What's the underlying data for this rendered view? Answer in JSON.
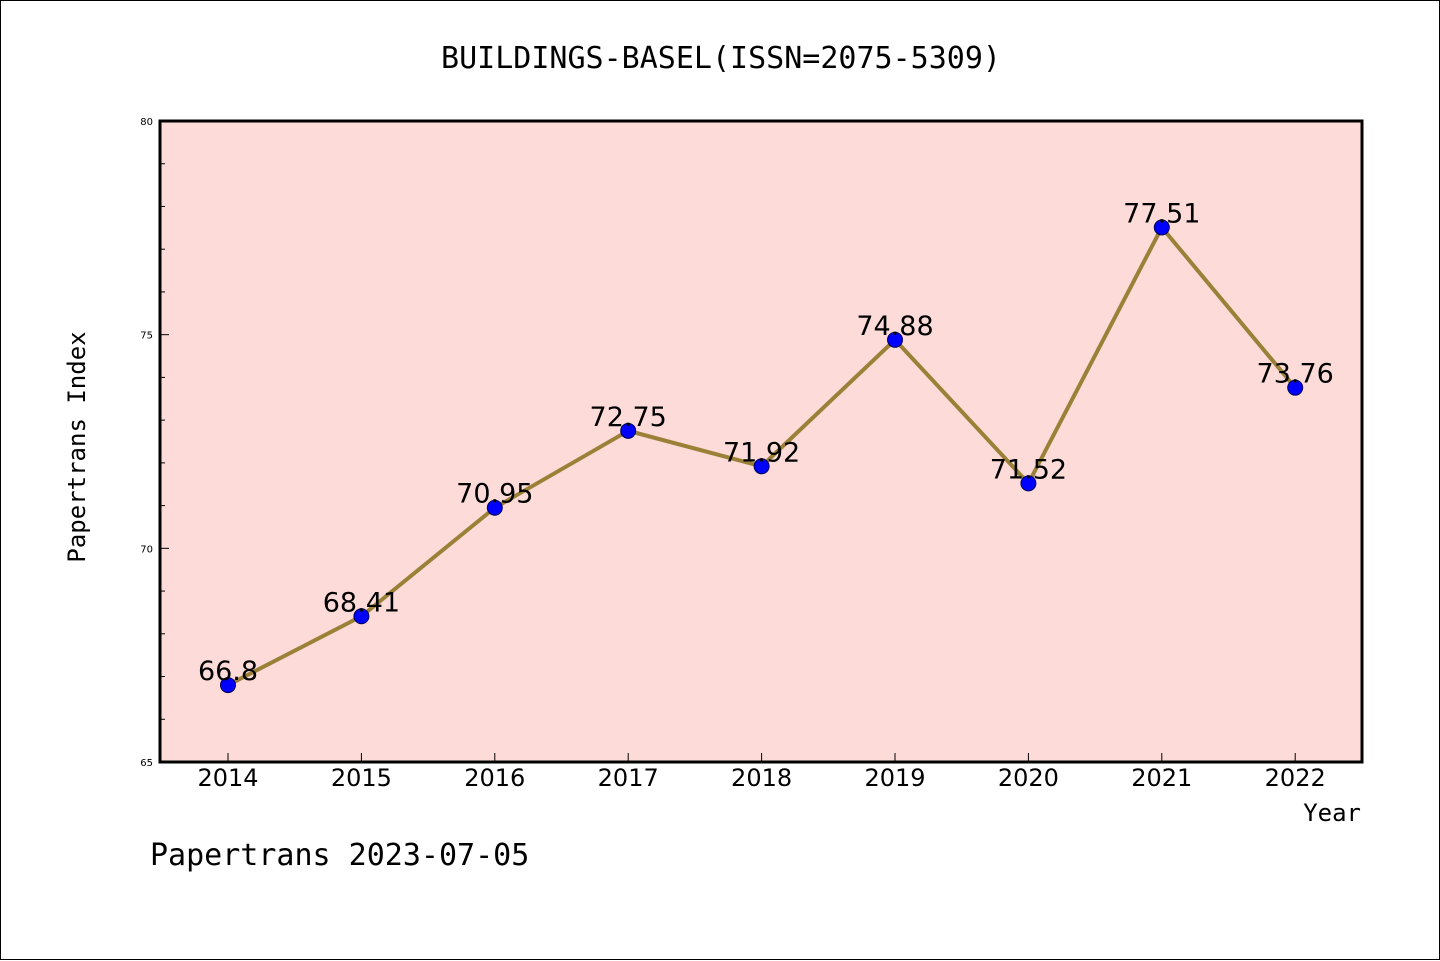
{
  "chart_data": {
    "type": "line",
    "title": "BUILDINGS-BASEL(ISSN=2075-5309)",
    "xlabel": "Year",
    "ylabel": "Papertrans Index",
    "footer": "Papertrans 2023-07-05",
    "categories": [
      "2014",
      "2015",
      "2016",
      "2017",
      "2018",
      "2019",
      "2020",
      "2021",
      "2022"
    ],
    "series": [
      {
        "values": [
          66.8,
          68.41,
          70.95,
          72.75,
          71.92,
          74.88,
          71.52,
          77.51,
          73.76
        ],
        "data_labels": [
          "66.8",
          "68.41",
          "70.95",
          "72.75",
          "71.92",
          "74.88",
          "71.52",
          "77.51",
          "73.76"
        ],
        "line_color": "#9b8037",
        "marker_color": "#0000ff"
      }
    ],
    "ylim": [
      65,
      80
    ],
    "yticks": [
      "65",
      "70",
      "75",
      "80"
    ],
    "grid": false,
    "legend": "none",
    "plot_background": "#fddbd8"
  }
}
